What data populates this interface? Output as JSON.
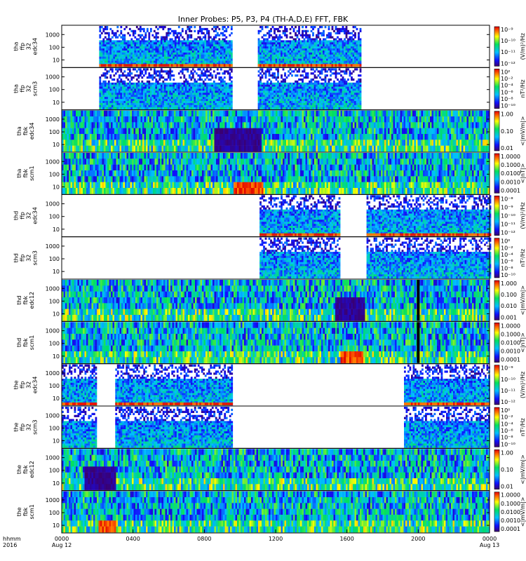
{
  "title": "Inner Probes: P5, P3, P4 (TH-A,D,E) FFT, FBK",
  "chart_data": {
    "type": "heatmap",
    "x_axis": {
      "row_label_1": "hhmm",
      "row_label_2": "2016",
      "ticks": [
        {
          "t": 0,
          "label": "0000",
          "sub": "Aug 12"
        },
        {
          "t": 4,
          "label": "0400",
          "sub": ""
        },
        {
          "t": 8,
          "label": "0800",
          "sub": ""
        },
        {
          "t": 12,
          "label": "1200",
          "sub": ""
        },
        {
          "t": 16,
          "label": "1600",
          "sub": ""
        },
        {
          "t": 20,
          "label": "2000",
          "sub": ""
        },
        {
          "t": 24,
          "label": "0000",
          "sub": "Aug 13"
        }
      ],
      "range": [
        0,
        24
      ],
      "unit": "hours"
    },
    "panels": [
      {
        "ylabel": [
          "tha",
          "ffp",
          "32",
          "edc34"
        ],
        "yticks": [
          "1000",
          "100",
          "10"
        ],
        "ylog": true,
        "cbar": "ffp",
        "cbar_title": "(V/m)²/Hz",
        "cbar_ticks": [
          "10⁻⁹",
          "10⁻¹⁰",
          "10⁻¹¹",
          "10⁻¹²"
        ],
        "coverage": [
          [
            2.1,
            9.5
          ],
          [
            11.0,
            16.8
          ]
        ],
        "top_band": true
      },
      {
        "ylabel": [
          "tha",
          "ffp",
          "32",
          "scm3"
        ],
        "yticks": [
          "1000",
          "100",
          "10"
        ],
        "ylog": true,
        "cbar": "ffp_scm",
        "cbar_title": "nT²/Hz",
        "cbar_ticks": [
          "10²",
          "10⁻²",
          "10⁻⁴",
          "10⁻⁶",
          "10⁻⁸",
          "10⁻¹⁰"
        ],
        "coverage": [
          [
            2.1,
            9.5
          ],
          [
            11.0,
            16.8
          ]
        ]
      },
      {
        "ylabel": [
          "tha",
          "fbk",
          "edc34"
        ],
        "yticks": [
          "1000",
          "100",
          "10"
        ],
        "ylog": true,
        "cbar": "fbk",
        "cbar_title": "<|mV/m|>",
        "cbar_ticks": [
          "1.00",
          "0.10",
          "0.01"
        ],
        "coverage": [
          [
            0,
            24
          ]
        ],
        "quiet": [
          [
            8.5,
            11.2
          ]
        ]
      },
      {
        "ylabel": [
          "tha",
          "fbk",
          "scm1"
        ],
        "yticks": [
          "1000",
          "100",
          "10"
        ],
        "ylog": true,
        "cbar": "fbk",
        "cbar_title": "<|nT|>",
        "cbar_ticks": [
          "1.0000",
          "0.1000",
          "0.0100",
          "0.0010",
          "0.0001"
        ],
        "coverage": [
          [
            0,
            24
          ]
        ],
        "burst": [
          [
            9.6,
            11.3
          ]
        ]
      },
      {
        "ylabel": [
          "thd",
          "ffp",
          "32",
          "edc34"
        ],
        "yticks": [
          "1000",
          "100",
          "10"
        ],
        "ylog": true,
        "cbar": "ffp",
        "cbar_title": "(V/m)²/Hz",
        "cbar_ticks": [
          "10⁻⁸",
          "10⁻⁹",
          "10⁻¹⁰",
          "10⁻¹¹",
          "10⁻¹²"
        ],
        "coverage": [
          [
            11.1,
            15.6
          ],
          [
            17.1,
            24
          ]
        ],
        "top_band": true
      },
      {
        "ylabel": [
          "thd",
          "ffp",
          "32",
          "scm3"
        ],
        "yticks": [
          "1000",
          "100",
          "10"
        ],
        "ylog": true,
        "cbar": "ffp_scm",
        "cbar_title": "nT²/Hz",
        "cbar_ticks": [
          "10⁰",
          "10⁻²",
          "10⁻⁴",
          "10⁻⁶",
          "10⁻⁸",
          "10⁻¹⁰"
        ],
        "coverage": [
          [
            11.1,
            15.6
          ],
          [
            17.1,
            24
          ]
        ]
      },
      {
        "ylabel": [
          "thd",
          "fbk",
          "edc12"
        ],
        "yticks": [
          "1000",
          "100",
          "10"
        ],
        "ylog": true,
        "cbar": "fbk",
        "cbar_title": "<|mV/m|>",
        "cbar_ticks": [
          "1.000",
          "0.100",
          "0.010",
          "0.001"
        ],
        "coverage": [
          [
            0,
            24
          ]
        ],
        "quiet": [
          [
            15.3,
            17.0
          ]
        ],
        "gap_line": 20.0
      },
      {
        "ylabel": [
          "thd",
          "fbk",
          "scm1"
        ],
        "yticks": [
          "1000",
          "100",
          "10"
        ],
        "ylog": true,
        "cbar": "fbk",
        "cbar_title": "<|nT|>",
        "cbar_ticks": [
          "1.0000",
          "0.1000",
          "0.0100",
          "0.0010",
          "0.0001"
        ],
        "coverage": [
          [
            0,
            24
          ]
        ],
        "burst": [
          [
            15.6,
            16.9
          ]
        ],
        "gap_line": 20.0
      },
      {
        "ylabel": [
          "the",
          "ffp",
          "32",
          "edc34"
        ],
        "yticks": [
          "1000",
          "100",
          "10"
        ],
        "ylog": true,
        "cbar": "ffp",
        "cbar_title": "(V/m)²/Hz",
        "cbar_ticks": [
          "10⁻⁹",
          "10⁻¹⁰",
          "10⁻¹¹",
          "10⁻¹²"
        ],
        "coverage": [
          [
            0,
            1.9
          ],
          [
            3.0,
            9.5
          ],
          [
            19.2,
            24
          ]
        ],
        "top_band": true
      },
      {
        "ylabel": [
          "the",
          "ffp",
          "32",
          "scm3"
        ],
        "yticks": [
          "1000",
          "100",
          "10"
        ],
        "ylog": true,
        "cbar": "ffp_scm",
        "cbar_title": "nT²/Hz",
        "cbar_ticks": [
          "10⁰",
          "10⁻²",
          "10⁻⁴",
          "10⁻⁶",
          "10⁻⁸",
          "10⁻¹⁰"
        ],
        "coverage": [
          [
            0,
            1.9
          ],
          [
            3.0,
            9.5
          ],
          [
            19.2,
            24
          ]
        ]
      },
      {
        "ylabel": [
          "the",
          "fbk",
          "edc12"
        ],
        "yticks": [
          "1000",
          "100",
          "10"
        ],
        "ylog": true,
        "cbar": "fbk",
        "cbar_title": "<|mV/m|>",
        "cbar_ticks": [
          "1.00",
          "0.10",
          "0.01"
        ],
        "coverage": [
          [
            0,
            24
          ]
        ],
        "quiet": [
          [
            1.2,
            3.0
          ]
        ]
      },
      {
        "ylabel": [
          "the",
          "fbk",
          "scm1"
        ],
        "yticks": [
          "1000",
          "100",
          "10"
        ],
        "ylog": true,
        "cbar": "fbk",
        "cbar_title": "<|mV/m|>",
        "cbar_ticks": [
          "1.0000",
          "0.1000",
          "0.0100",
          "0.0010",
          "0.0001"
        ],
        "coverage": [
          [
            0,
            24
          ]
        ],
        "burst": [
          [
            2.0,
            3.0
          ]
        ]
      }
    ],
    "colorscale": "rainbow (purple-blue-cyan-green-yellow-red)"
  }
}
